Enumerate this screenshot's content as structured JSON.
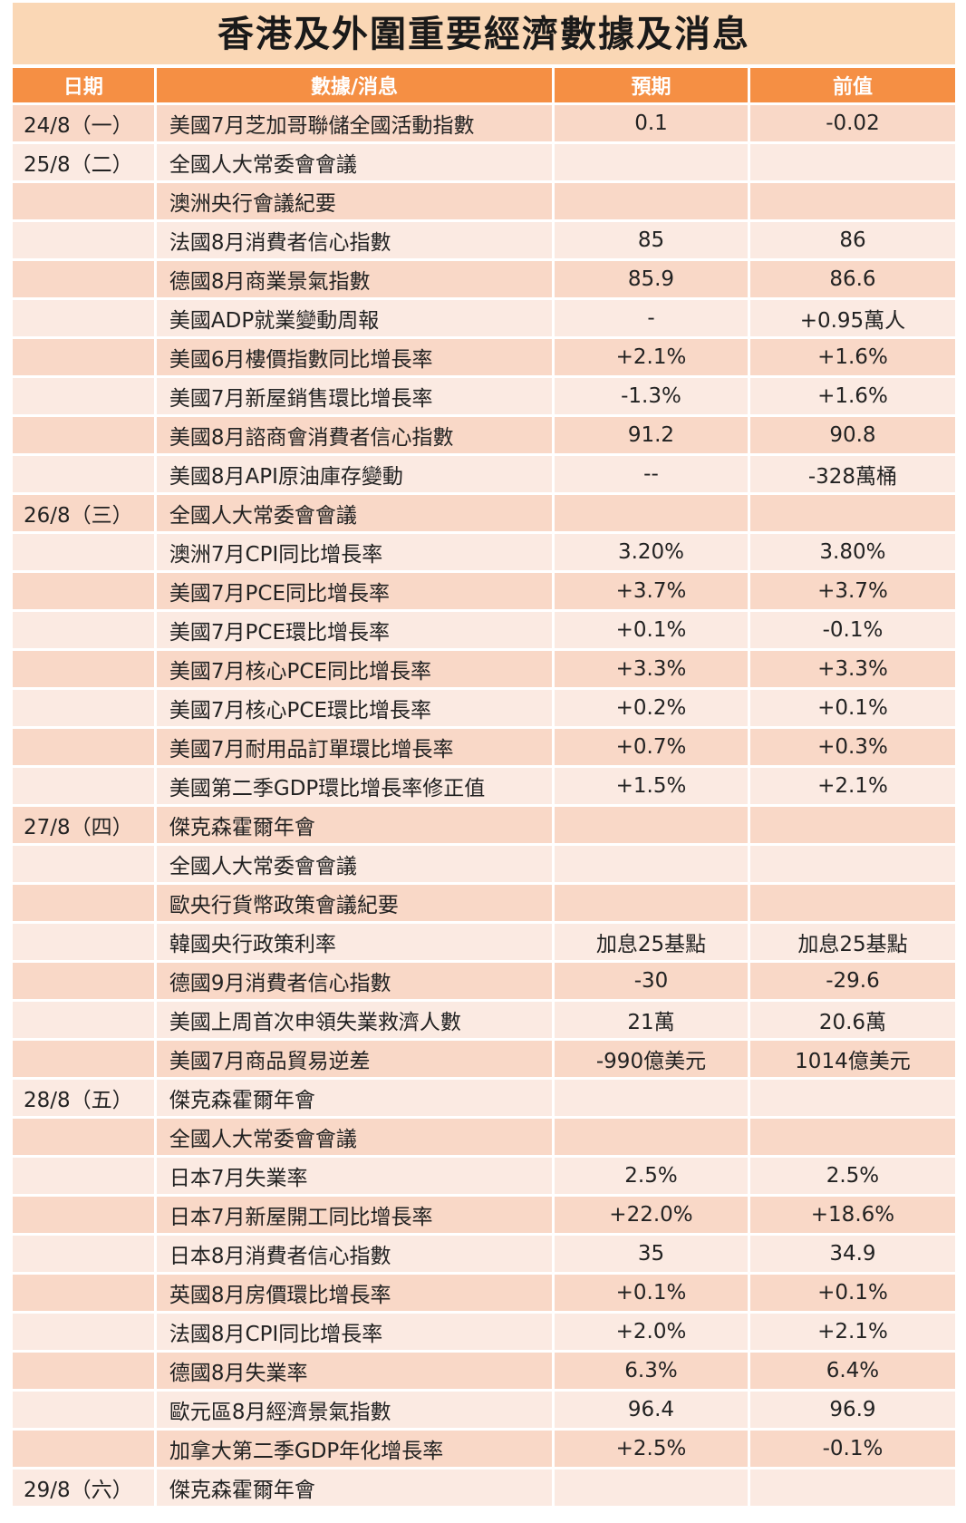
{
  "title": "香港及外圍重要經濟數據及消息",
  "headers": {
    "date": "日期",
    "item": "數據/消息",
    "expected": "預期",
    "previous": "前值"
  },
  "rows": [
    {
      "date": "24/8（一）",
      "item": "美國7月芝加哥聯儲全國活動指數",
      "expected": "0.1",
      "previous": "-0.02"
    },
    {
      "date": "25/8（二）",
      "item": "全國人大常委會會議",
      "expected": "",
      "previous": ""
    },
    {
      "date": "",
      "item": "澳洲央行會議紀要",
      "expected": "",
      "previous": ""
    },
    {
      "date": "",
      "item": "法國8月消費者信心指數",
      "expected": "85",
      "previous": "86"
    },
    {
      "date": "",
      "item": "德國8月商業景氣指數",
      "expected": "85.9",
      "previous": "86.6"
    },
    {
      "date": "",
      "item": "美國ADP就業變動周報",
      "expected": "-",
      "previous": "+0.95萬人"
    },
    {
      "date": "",
      "item": "美國6月樓價指數同比增長率",
      "expected": "+2.1%",
      "previous": "+1.6%"
    },
    {
      "date": "",
      "item": "美國7月新屋銷售環比增長率",
      "expected": "-1.3%",
      "previous": "+1.6%"
    },
    {
      "date": "",
      "item": "美國8月諮商會消費者信心指數",
      "expected": "91.2",
      "previous": "90.8"
    },
    {
      "date": "",
      "item": "美國8月API原油庫存變動",
      "expected": "--",
      "previous": "-328萬桶"
    },
    {
      "date": "26/8（三）",
      "item": "全國人大常委會會議",
      "expected": "",
      "previous": ""
    },
    {
      "date": "",
      "item": "澳洲7月CPI同比增長率",
      "expected": "3.20%",
      "previous": "3.80%"
    },
    {
      "date": "",
      "item": "美國7月PCE同比增長率",
      "expected": "+3.7%",
      "previous": "+3.7%"
    },
    {
      "date": "",
      "item": "美國7月PCE環比增長率",
      "expected": "+0.1%",
      "previous": "-0.1%"
    },
    {
      "date": "",
      "item": "美國7月核心PCE同比增長率",
      "expected": "+3.3%",
      "previous": "+3.3%"
    },
    {
      "date": "",
      "item": "美國7月核心PCE環比增長率",
      "expected": "+0.2%",
      "previous": "+0.1%"
    },
    {
      "date": "",
      "item": "美國7月耐用品訂單環比增長率",
      "expected": "+0.7%",
      "previous": "+0.3%"
    },
    {
      "date": "",
      "item": "美國第二季GDP環比增長率修正值",
      "expected": "+1.5%",
      "previous": "+2.1%"
    },
    {
      "date": "27/8（四）",
      "item": "傑克森霍爾年會",
      "expected": "",
      "previous": ""
    },
    {
      "date": "",
      "item": "全國人大常委會會議",
      "expected": "",
      "previous": ""
    },
    {
      "date": "",
      "item": "歐央行貨幣政策會議紀要",
      "expected": "",
      "previous": ""
    },
    {
      "date": "",
      "item": "韓國央行政策利率",
      "expected": "加息25基點",
      "previous": "加息25基點"
    },
    {
      "date": "",
      "item": "德國9月消費者信心指數",
      "expected": "-30",
      "previous": "-29.6"
    },
    {
      "date": "",
      "item": "美國上周首次申領失業救濟人數",
      "expected": "21萬",
      "previous": "20.6萬"
    },
    {
      "date": "",
      "item": "美國7月商品貿易逆差",
      "expected": "-990億美元",
      "previous": "1014億美元"
    },
    {
      "date": "28/8（五）",
      "item": "傑克森霍爾年會",
      "expected": "",
      "previous": ""
    },
    {
      "date": "",
      "item": "全國人大常委會會議",
      "expected": "",
      "previous": ""
    },
    {
      "date": "",
      "item": "日本7月失業率",
      "expected": "2.5%",
      "previous": "2.5%"
    },
    {
      "date": "",
      "item": "日本7月新屋開工同比增長率",
      "expected": "+22.0%",
      "previous": "+18.6%"
    },
    {
      "date": "",
      "item": "日本8月消費者信心指數",
      "expected": "35",
      "previous": "34.9"
    },
    {
      "date": "",
      "item": "英國8月房價環比增長率",
      "expected": "+0.1%",
      "previous": "+0.1%"
    },
    {
      "date": "",
      "item": "法國8月CPI同比增長率",
      "expected": "+2.0%",
      "previous": "+2.1%"
    },
    {
      "date": "",
      "item": "德國8月失業率",
      "expected": "6.3%",
      "previous": "6.4%"
    },
    {
      "date": "",
      "item": "歐元區8月經濟景氣指數",
      "expected": "96.4",
      "previous": "96.9"
    },
    {
      "date": "",
      "item": "加拿大第二季GDP年化增長率",
      "expected": "+2.5%",
      "previous": "-0.1%"
    },
    {
      "date": "29/8（六）",
      "item": "傑克森霍爾年會",
      "expected": "",
      "previous": ""
    }
  ]
}
